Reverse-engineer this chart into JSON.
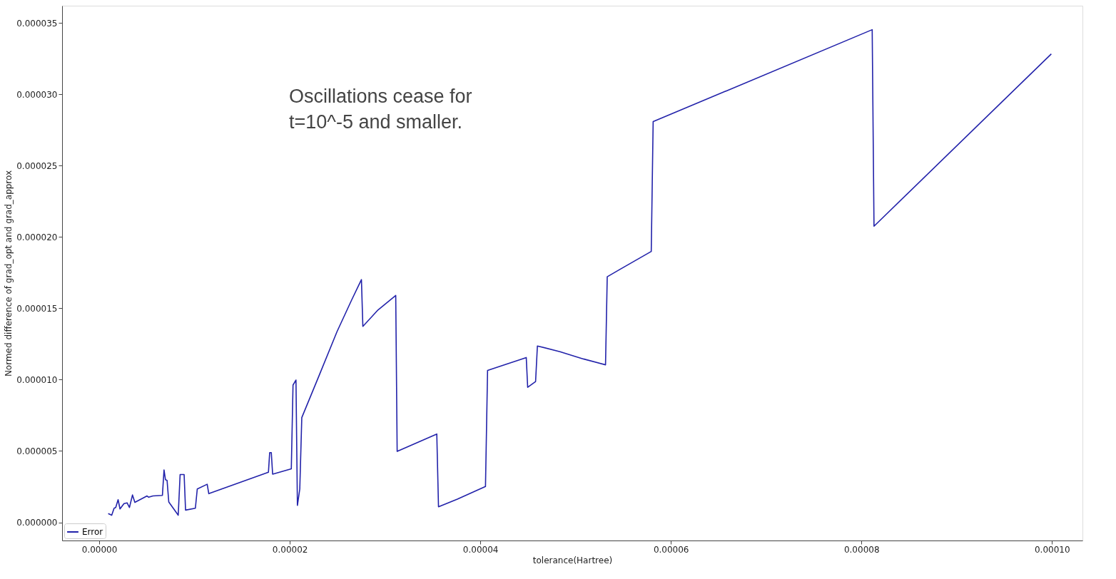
{
  "chart_data": {
    "type": "line",
    "xlabel": "tolerance(Hartree)",
    "ylabel": "Normed difference of grad_opt and grad_approx",
    "annotations": [
      "Oscillations cease for\nt=10^-5 and smaller."
    ],
    "x": [
      9.4e-07,
      1.31e-06,
      1.56e-06,
      1.73e-06,
      1.98e-06,
      2.18e-06,
      2.6e-06,
      2.92e-06,
      3.17e-06,
      3.49e-06,
      3.74e-06,
      5.02e-06,
      5.19e-06,
      5.64e-06,
      6.63e-06,
      6.8e-06,
      6.95e-06,
      7.12e-06,
      7.3e-06,
      8.29e-06,
      8.49e-06,
      8.91e-06,
      9.06e-06,
      1.009e-05,
      1.029e-05,
      1.133e-05,
      1.15e-05,
      1.776e-05,
      1.789e-05,
      1.806e-05,
      1.82e-05,
      2.016e-05,
      2.034e-05,
      2.065e-05,
      2.08e-05,
      2.105e-05,
      2.126e-05,
      2.311e-05,
      2.496e-05,
      2.65e-05,
      2.752e-05,
      2.767e-05,
      2.927e-05,
      3.112e-05,
      3.127e-05,
      3.543e-05,
      3.561e-05,
      3.759e-05,
      4.054e-05,
      4.076e-05,
      4.482e-05,
      4.497e-05,
      4.58e-05,
      4.599e-05,
      4.836e-05,
      5.082e-05,
      5.314e-05,
      5.332e-05,
      5.464e-05,
      5.794e-05,
      5.814e-05,
      8.113e-05,
      8.132e-05,
      9.993e-05
    ],
    "series": [
      {
        "name": "Error",
        "color": "#2222aa",
        "values": [
          6.2e-07,
          5e-07,
          9.9e-07,
          1.04e-06,
          1.59e-06,
          9.4e-07,
          1.32e-06,
          1.37e-06,
          1.04e-06,
          1.92e-06,
          1.4e-06,
          1.85e-06,
          1.76e-06,
          1.85e-06,
          1.89e-06,
          3.67e-06,
          2.99e-06,
          2.94e-06,
          1.43e-06,
          5e-07,
          3.35e-06,
          3.35e-06,
          8.6e-07,
          9.9e-07,
          2.34e-06,
          2.67e-06,
          2.01e-06,
          3.51e-06,
          4.89e-06,
          4.89e-06,
          3.38e-06,
          3.75e-06,
          9.62e-06,
          9.97e-06,
          1.19e-06,
          2.34e-06,
          7.34e-06,
          1.034e-05,
          1.337e-05,
          1.559e-05,
          1.701e-05,
          1.373e-05,
          1.489e-05,
          1.59e-05,
          4.97e-06,
          6.19e-06,
          1.09e-06,
          1.63e-06,
          2.51e-06,
          1.064e-05,
          1.155e-05,
          9.46e-06,
          9.87e-06,
          1.236e-05,
          1.196e-05,
          1.145e-05,
          1.104e-05,
          1.721e-05,
          1.772e-05,
          1.898e-05,
          2.808e-05,
          3.452e-05,
          2.075e-05,
          3.282e-05
        ]
      }
    ],
    "xlim": [
      -3.9e-06,
      0.0001032
    ],
    "ylim": [
      -1.27e-06,
      3.62e-05
    ],
    "xticks": [
      {
        "value": 0,
        "label": "0.00000"
      },
      {
        "value": 2e-05,
        "label": "0.00002"
      },
      {
        "value": 4e-05,
        "label": "0.00004"
      },
      {
        "value": 6e-05,
        "label": "0.00006"
      },
      {
        "value": 8e-05,
        "label": "0.00008"
      },
      {
        "value": 0.0001,
        "label": "0.00010"
      }
    ],
    "yticks": [
      {
        "value": 0,
        "label": "0.000000"
      },
      {
        "value": 5e-06,
        "label": "0.000005"
      },
      {
        "value": 1e-05,
        "label": "0.000010"
      },
      {
        "value": 1.5e-05,
        "label": "0.000015"
      },
      {
        "value": 2e-05,
        "label": "0.000020"
      },
      {
        "value": 2.5e-05,
        "label": "0.000025"
      },
      {
        "value": 3e-05,
        "label": "0.000030"
      },
      {
        "value": 3.5e-05,
        "label": "0.000035"
      }
    ],
    "grid": false,
    "legend": "bottom left",
    "marker": "none",
    "line_style": "solid"
  }
}
